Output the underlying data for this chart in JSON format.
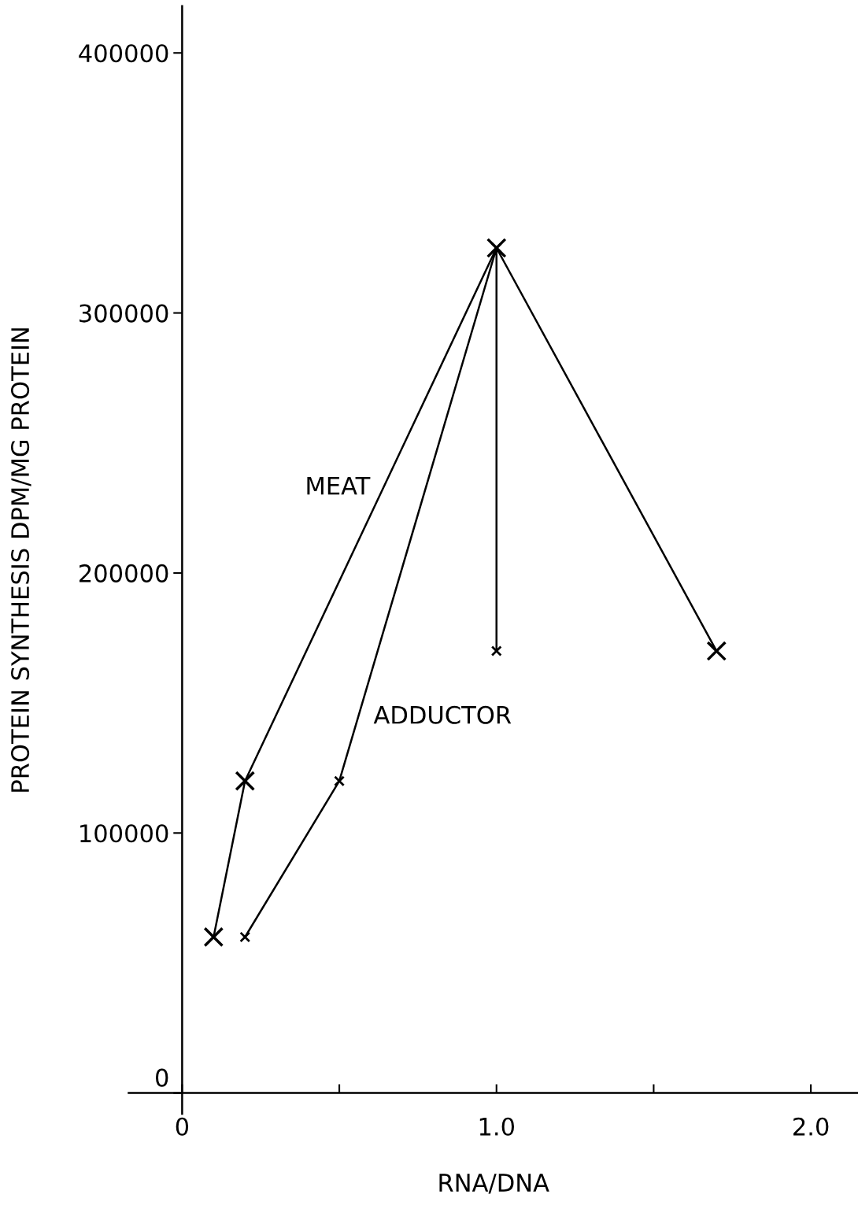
{
  "chart_data": {
    "type": "line",
    "xlabel": "RNA/DNA",
    "ylabel": "PROTEIN SYNTHESIS DPM/MG PROTEIN",
    "series": [
      {
        "name": "MEAT",
        "color": "#000000",
        "x": [
          0.1,
          0.2,
          1.0,
          1.7
        ],
        "values": [
          60000,
          120000,
          325000,
          170000
        ]
      },
      {
        "name": "ADDUCTOR",
        "color": "#000000",
        "x": [
          0.2,
          0.5,
          1.0,
          1.0
        ],
        "values": [
          60000,
          120000,
          325000,
          170000
        ]
      }
    ],
    "xlim": [
      -0.17,
      2.15
    ],
    "ylim": [
      -8000,
      418000
    ],
    "xticks": [
      0,
      {
        "value": 0.5,
        "label": null
      },
      {
        "value": 1.0,
        "label": "1.0"
      },
      {
        "value": 1.5,
        "label": null
      },
      {
        "value": 2.0,
        "label": "2.0"
      }
    ],
    "yticks": [
      0,
      100000,
      200000,
      300000,
      400000
    ],
    "marker": "cross",
    "line_style": "solid",
    "grid": false,
    "legend": false
  }
}
